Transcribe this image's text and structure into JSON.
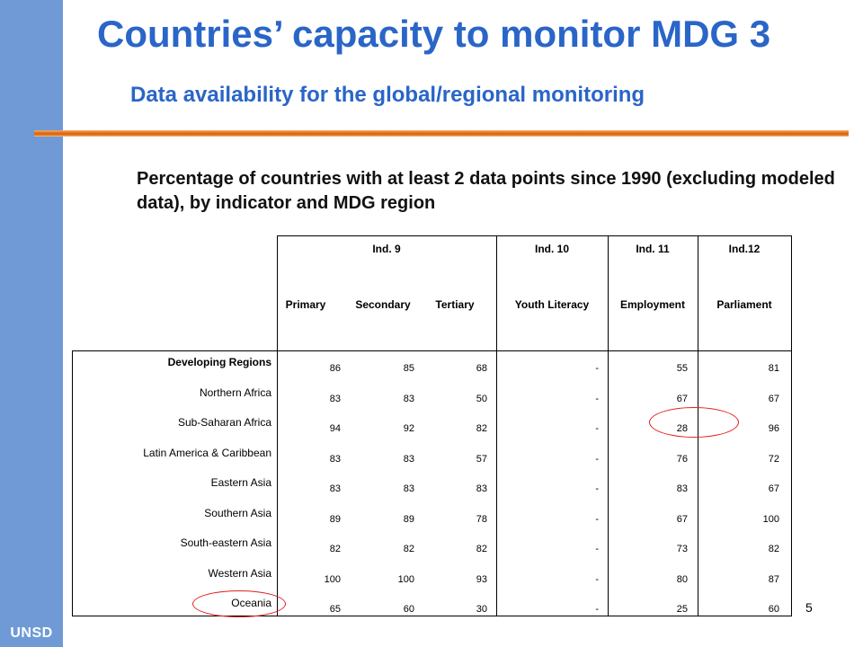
{
  "sidebar": {
    "label": "UNSD",
    "color": "#6f9ad6"
  },
  "title": "Countries’ capacity to monitor MDG 3",
  "subtitle": "Data availability for the global/regional monitoring",
  "caption": "Percentage of countries with at least 2 data points since 1990 (excluding modeled data), by indicator and MDG region",
  "accent_color": "#2a65c8",
  "rule_color": "#e06a10",
  "table": {
    "indicator_headers": [
      "Ind. 9",
      "Ind. 10",
      "Ind. 11",
      "Ind.12"
    ],
    "column_headers": [
      "Primary",
      "Secondary",
      "Tertiary",
      "Youth Literacy",
      "Employment",
      "Parliament"
    ],
    "rows": [
      {
        "region": "Developing Regions",
        "values": [
          "86",
          "85",
          "68",
          "-",
          "55",
          "81"
        ]
      },
      {
        "region": "Northern Africa",
        "values": [
          "83",
          "83",
          "50",
          "-",
          "67",
          "67"
        ]
      },
      {
        "region": "Sub-Saharan Africa",
        "values": [
          "94",
          "92",
          "82",
          "-",
          "28",
          "96"
        ]
      },
      {
        "region": "Latin America & Caribbean",
        "values": [
          "83",
          "83",
          "57",
          "-",
          "76",
          "72"
        ]
      },
      {
        "region": "Eastern Asia",
        "values": [
          "83",
          "83",
          "83",
          "-",
          "83",
          "67"
        ]
      },
      {
        "region": "Southern Asia",
        "values": [
          "89",
          "89",
          "78",
          "-",
          "67",
          "100"
        ]
      },
      {
        "region": "South-eastern Asia",
        "values": [
          "82",
          "82",
          "82",
          "-",
          "73",
          "82"
        ]
      },
      {
        "region": "Western Asia",
        "values": [
          "100",
          "100",
          "93",
          "-",
          "80",
          "87"
        ]
      },
      {
        "region": "Oceania",
        "values": [
          "65",
          "60",
          "30",
          "-",
          "25",
          "60"
        ]
      }
    ],
    "highlight_color": "#e02020"
  },
  "page_number": "5"
}
